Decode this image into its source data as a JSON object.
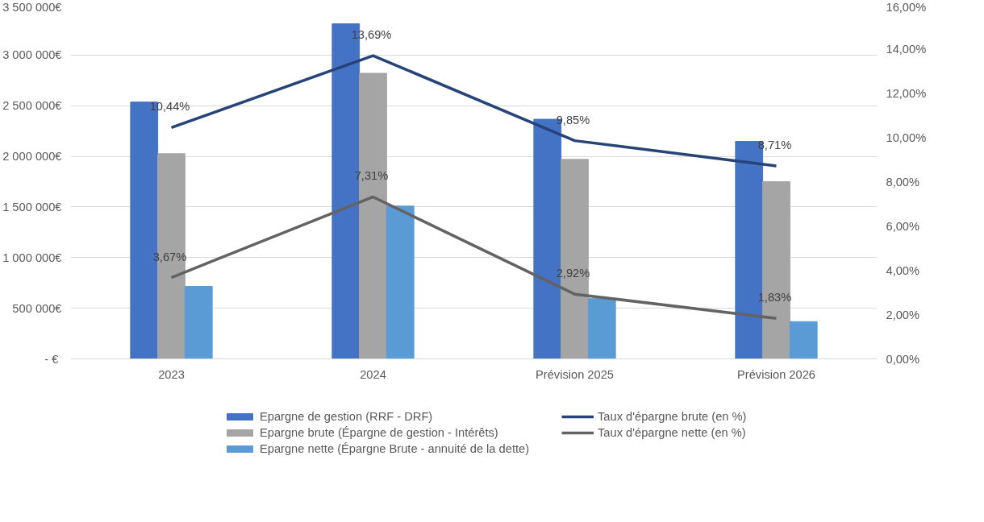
{
  "chart_data": {
    "type": "bar",
    "categories": [
      "2023",
      "2024",
      "Prévision 2025",
      "Prévision 2026"
    ],
    "ylim": [
      0,
      3500000
    ],
    "yticks": [
      {
        "value": 0,
        "label": "-  €"
      },
      {
        "value": 500000,
        "label": "500 000€"
      },
      {
        "value": 1000000,
        "label": "1 000 000€"
      },
      {
        "value": 1500000,
        "label": "1 500 000€"
      },
      {
        "value": 2000000,
        "label": "2 000 000€"
      },
      {
        "value": 2500000,
        "label": "2 500 000€"
      },
      {
        "value": 3000000,
        "label": "3 000 000€"
      },
      {
        "value": 3500000,
        "label": "3 500 000€"
      }
    ],
    "y2lim": [
      0,
      16
    ],
    "y2ticks": [
      {
        "value": 0,
        "label": "0,00%"
      },
      {
        "value": 2,
        "label": "2,00%"
      },
      {
        "value": 4,
        "label": "4,00%"
      },
      {
        "value": 6,
        "label": "6,00%"
      },
      {
        "value": 8,
        "label": "8,00%"
      },
      {
        "value": 10,
        "label": "10,00%"
      },
      {
        "value": 12,
        "label": "12,00%"
      },
      {
        "value": 14,
        "label": "14,00%"
      },
      {
        "value": 16,
        "label": "16,00%"
      }
    ],
    "grid": "y",
    "legend": "bottom",
    "series": [
      {
        "name": "Epargne de gestion (RRF - DRF)",
        "color": "#4472c4",
        "values": [
          2536000,
          3309000,
          2366000,
          2147000
        ]
      },
      {
        "name": "Epargne brute (Épargne de gestion - Intérêts)",
        "color": "#a5a5a5",
        "values": [
          2026000,
          2820000,
          1970000,
          1750000
        ]
      },
      {
        "name": "Epargne nette (Épargne Brute - annuité de la dette)",
        "color": "#5b9bd5",
        "values": [
          716000,
          1509000,
          595000,
          368000
        ]
      },
      {
        "name": "Taux d'épargne brute (en %)",
        "type": "line",
        "axis": "y2",
        "color": "#264478",
        "values": [
          10.44,
          13.69,
          9.85,
          8.71
        ],
        "value_labels": [
          "10,44%",
          "13,69%",
          "9,85%",
          "8,71%"
        ]
      },
      {
        "name": "Taux d'épargne nette (en %)",
        "type": "line",
        "axis": "y2",
        "color": "#636363",
        "values": [
          3.67,
          7.31,
          2.92,
          1.83
        ],
        "value_labels": [
          "3,67%",
          "7,31%",
          "2,92%",
          "1,83%"
        ]
      }
    ]
  }
}
